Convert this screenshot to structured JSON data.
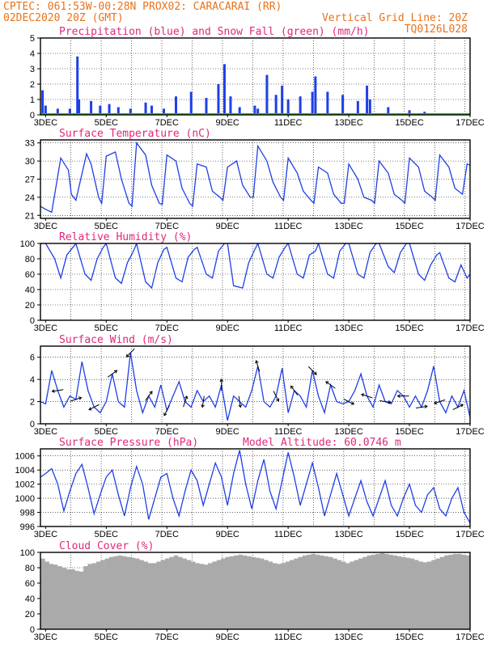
{
  "header": {
    "line1_left": "CPTEC:  061:53W-00:28N  PROX02: CARACARAI (RR)",
    "line2_left": "02DEC2020 20Z (GMT)",
    "line2_right": "Vertical Grid Line: 20Z",
    "line3_right": "TQ0126L028"
  },
  "x_tick_labels": [
    "3DEC",
    "5DEC",
    "7DEC",
    "9DEC",
    "11DEC",
    "13DEC",
    "15DEC",
    "17DEC"
  ],
  "colors": {
    "series_blue": "#1f3fe6",
    "snow_green": "#2fb52f",
    "cloud_gray": "#aaaaaa",
    "title_pink": "#e0287a",
    "header_orange": "#e8731c"
  },
  "panels": [
    {
      "id": "precip",
      "title": "Precipitation (blue) and Snow Fall (green) (mm/h)",
      "yticks": [
        "0",
        "1",
        "2",
        "3",
        "4",
        "5"
      ]
    },
    {
      "id": "temp",
      "title": "Surface Temperature (nC)",
      "yticks": [
        "21",
        "24",
        "27",
        "30",
        "33"
      ]
    },
    {
      "id": "rh",
      "title": "Relative Humidity (%)",
      "yticks": [
        "0",
        "20",
        "40",
        "60",
        "80",
        "100"
      ]
    },
    {
      "id": "wind",
      "title": "Surface Wind (m/s)",
      "yticks": [
        "0",
        "2",
        "4",
        "6"
      ]
    },
    {
      "id": "press",
      "title": "Surface Pressure (hPa)",
      "extra": "Model Altitude: 60.0746 m",
      "yticks": [
        "996",
        "998",
        "1000",
        "1002",
        "1004",
        "1006"
      ]
    },
    {
      "id": "cloud",
      "title": "Cloud Cover (%)",
      "yticks": [
        "0",
        "20",
        "40",
        "60",
        "80",
        "100"
      ]
    }
  ],
  "chart_data": [
    {
      "type": "bar",
      "title": "Precipitation (blue) and Snow Fall (green) (mm/h)",
      "ylim": [
        0,
        5
      ],
      "x_range_days": [
        2.83,
        17.0
      ],
      "series": [
        {
          "name": "Precipitation (blue)",
          "points": [
            [
              2.9,
              1.6
            ],
            [
              3.0,
              0.6
            ],
            [
              3.4,
              0.4
            ],
            [
              3.8,
              0.4
            ],
            [
              4.05,
              3.8
            ],
            [
              4.1,
              1.0
            ],
            [
              4.5,
              0.9
            ],
            [
              4.8,
              0.6
            ],
            [
              5.1,
              0.7
            ],
            [
              5.4,
              0.5
            ],
            [
              5.8,
              0.4
            ],
            [
              6.3,
              0.8
            ],
            [
              6.5,
              0.6
            ],
            [
              6.9,
              0.4
            ],
            [
              7.3,
              1.2
            ],
            [
              7.8,
              1.5
            ],
            [
              8.3,
              1.1
            ],
            [
              8.7,
              2.0
            ],
            [
              8.9,
              3.3
            ],
            [
              9.1,
              1.2
            ],
            [
              9.4,
              0.5
            ],
            [
              9.9,
              0.6
            ],
            [
              10.0,
              0.4
            ],
            [
              10.3,
              2.6
            ],
            [
              10.6,
              1.3
            ],
            [
              10.8,
              1.9
            ],
            [
              11.0,
              1.0
            ],
            [
              11.4,
              1.2
            ],
            [
              11.8,
              1.5
            ],
            [
              11.9,
              2.5
            ],
            [
              12.3,
              1.5
            ],
            [
              12.8,
              1.3
            ],
            [
              13.3,
              0.9
            ],
            [
              13.6,
              1.9
            ],
            [
              13.7,
              1.0
            ],
            [
              14.3,
              0.5
            ],
            [
              15.0,
              0.3
            ],
            [
              15.5,
              0.2
            ]
          ]
        },
        {
          "name": "Snow Fall (green)",
          "values": [
            0
          ]
        }
      ]
    },
    {
      "type": "line",
      "title": "Surface Temperature (nC)",
      "ylim": [
        20.5,
        33.5
      ],
      "x": [
        2.83,
        3.0,
        3.2,
        3.35,
        3.5,
        3.75,
        3.85,
        4.0,
        4.35,
        4.5,
        4.75,
        4.85,
        5.0,
        5.3,
        5.5,
        5.75,
        5.85,
        6.0,
        6.3,
        6.5,
        6.75,
        6.85,
        7.0,
        7.3,
        7.5,
        7.75,
        7.85,
        8.0,
        8.3,
        8.5,
        8.75,
        8.85,
        9.0,
        9.3,
        9.5,
        9.75,
        9.85,
        10.0,
        10.3,
        10.5,
        10.75,
        10.85,
        11.0,
        11.3,
        11.5,
        11.75,
        11.85,
        12.0,
        12.3,
        12.5,
        12.75,
        12.85,
        13.0,
        13.3,
        13.5,
        13.75,
        13.85,
        14.0,
        14.3,
        14.5,
        14.75,
        14.85,
        15.0,
        15.3,
        15.5,
        15.75,
        15.85,
        16.0,
        16.3,
        16.5,
        16.75,
        16.9,
        17.0
      ],
      "values": [
        22.5,
        22.0,
        21.5,
        26.0,
        30.5,
        28.5,
        24.5,
        23.5,
        31.2,
        29.5,
        24.0,
        23.0,
        30.8,
        31.5,
        27.0,
        23.0,
        22.5,
        33.0,
        31.0,
        26.0,
        23.0,
        22.8,
        31.0,
        30.0,
        25.5,
        23.0,
        22.5,
        29.5,
        29.0,
        25.0,
        24.0,
        23.5,
        29.0,
        30.0,
        26.0,
        24.0,
        24.0,
        32.5,
        30.0,
        26.5,
        24.0,
        23.5,
        30.5,
        28.0,
        25.0,
        23.5,
        23.0,
        29.0,
        28.0,
        24.5,
        23.0,
        23.0,
        29.5,
        27.0,
        24.0,
        23.5,
        23.0,
        30.0,
        28.0,
        24.5,
        23.5,
        23.0,
        30.5,
        29.0,
        25.0,
        24.0,
        23.5,
        31.0,
        29.0,
        25.5,
        24.5,
        29.5,
        29.3
      ]
    },
    {
      "type": "line",
      "title": "Relative Humidity (%)",
      "ylim": [
        0,
        100
      ],
      "x": [
        2.83,
        3.0,
        3.3,
        3.5,
        3.7,
        3.9,
        4.0,
        4.3,
        4.5,
        4.7,
        4.9,
        5.0,
        5.3,
        5.5,
        5.7,
        5.9,
        6.0,
        6.3,
        6.5,
        6.7,
        6.9,
        7.0,
        7.3,
        7.5,
        7.7,
        7.9,
        8.0,
        8.3,
        8.5,
        8.7,
        8.9,
        9.0,
        9.2,
        9.5,
        9.7,
        9.9,
        10.0,
        10.3,
        10.5,
        10.7,
        10.9,
        11.0,
        11.3,
        11.5,
        11.7,
        11.9,
        12.0,
        12.3,
        12.5,
        12.7,
        12.9,
        13.0,
        13.3,
        13.5,
        13.7,
        13.9,
        14.0,
        14.3,
        14.5,
        14.7,
        14.9,
        15.0,
        15.3,
        15.5,
        15.7,
        15.9,
        16.0,
        16.3,
        16.5,
        16.7,
        16.9,
        17.0
      ],
      "values": [
        100,
        100,
        80,
        55,
        85,
        95,
        100,
        60,
        52,
        80,
        95,
        100,
        55,
        48,
        75,
        90,
        100,
        50,
        42,
        75,
        92,
        95,
        55,
        50,
        82,
        92,
        95,
        60,
        55,
        90,
        100,
        100,
        45,
        42,
        75,
        92,
        100,
        60,
        55,
        82,
        95,
        100,
        60,
        55,
        85,
        90,
        100,
        60,
        55,
        90,
        100,
        100,
        60,
        55,
        88,
        100,
        100,
        70,
        62,
        88,
        100,
        100,
        60,
        52,
        72,
        85,
        88,
        55,
        50,
        72,
        55,
        60
      ]
    },
    {
      "type": "line",
      "title": "Surface Wind (m/s)",
      "ylim": [
        0,
        7
      ],
      "x": [
        2.83,
        3.0,
        3.2,
        3.4,
        3.6,
        3.8,
        4.0,
        4.2,
        4.4,
        4.6,
        4.8,
        5.0,
        5.2,
        5.4,
        5.6,
        5.8,
        6.0,
        6.2,
        6.4,
        6.6,
        6.8,
        7.0,
        7.2,
        7.4,
        7.6,
        7.8,
        8.0,
        8.2,
        8.4,
        8.6,
        8.8,
        9.0,
        9.2,
        9.4,
        9.6,
        9.8,
        10.0,
        10.2,
        10.4,
        10.6,
        10.8,
        11.0,
        11.2,
        11.4,
        11.6,
        11.8,
        12.0,
        12.2,
        12.4,
        12.6,
        12.8,
        13.0,
        13.2,
        13.4,
        13.6,
        13.8,
        14.0,
        14.2,
        14.4,
        14.6,
        14.8,
        15.0,
        15.2,
        15.4,
        15.6,
        15.8,
        16.0,
        16.2,
        16.4,
        16.6,
        16.8,
        17.0
      ],
      "values": [
        2.0,
        1.8,
        4.8,
        3.0,
        1.5,
        2.5,
        2.2,
        5.6,
        3.0,
        1.5,
        1.0,
        2.0,
        4.5,
        2.0,
        1.5,
        6.4,
        3.0,
        1.0,
        2.5,
        1.5,
        3.5,
        1.2,
        2.5,
        3.8,
        2.0,
        1.5,
        3.0,
        2.0,
        2.5,
        1.5,
        3.5,
        0.3,
        2.5,
        2.0,
        1.5,
        3.0,
        5.2,
        2.0,
        1.5,
        2.5,
        5.0,
        1.0,
        3.0,
        2.5,
        1.5,
        4.8,
        2.5,
        1.0,
        3.5,
        2.0,
        1.8,
        2.0,
        3.0,
        4.5,
        2.5,
        1.5,
        3.5,
        2.0,
        1.8,
        3.0,
        2.5,
        1.5,
        2.5,
        1.5,
        3.0,
        5.2,
        2.0,
        1.0,
        2.5,
        1.5,
        3.0,
        0.6
      ]
    },
    {
      "type": "line",
      "title": "Surface Pressure (hPa)",
      "ylim": [
        996,
        1007
      ],
      "x": [
        2.83,
        3.0,
        3.2,
        3.4,
        3.6,
        3.8,
        4.0,
        4.2,
        4.4,
        4.6,
        4.8,
        5.0,
        5.2,
        5.4,
        5.6,
        5.8,
        6.0,
        6.2,
        6.4,
        6.6,
        6.8,
        7.0,
        7.2,
        7.4,
        7.6,
        7.8,
        8.0,
        8.2,
        8.4,
        8.6,
        8.8,
        9.0,
        9.2,
        9.4,
        9.6,
        9.8,
        10.0,
        10.2,
        10.4,
        10.6,
        10.8,
        11.0,
        11.2,
        11.4,
        11.6,
        11.8,
        12.0,
        12.2,
        12.4,
        12.6,
        12.8,
        13.0,
        13.2,
        13.4,
        13.6,
        13.8,
        14.0,
        14.2,
        14.4,
        14.6,
        14.8,
        15.0,
        15.2,
        15.4,
        15.6,
        15.8,
        16.0,
        16.2,
        16.4,
        16.6,
        16.8,
        17.0
      ],
      "values": [
        1003.0,
        1003.5,
        1004.2,
        1002.0,
        998.2,
        1001.0,
        1003.5,
        1004.8,
        1001.5,
        997.8,
        1000.5,
        1003.0,
        1004.0,
        1000.5,
        997.5,
        1001.5,
        1004.5,
        1002.0,
        997.0,
        1000.0,
        1003.0,
        1003.5,
        1000.0,
        997.5,
        1001.0,
        1004.0,
        1002.5,
        999.0,
        1002.0,
        1005.0,
        1003.0,
        999.0,
        1003.5,
        1006.8,
        1002.0,
        998.5,
        1002.5,
        1005.5,
        1001.0,
        998.5,
        1002.5,
        1006.5,
        1003.0,
        999.0,
        1002.0,
        1005.0,
        1001.5,
        997.5,
        1000.5,
        1003.5,
        1000.5,
        997.5,
        1000.0,
        1002.5,
        999.5,
        997.5,
        1000.0,
        1002.5,
        999.0,
        997.5,
        1000.0,
        1002.0,
        999.0,
        998.0,
        1000.5,
        1001.5,
        998.5,
        997.5,
        1000.0,
        1001.5,
        998.0,
        996.5
      ]
    },
    {
      "type": "bar",
      "title": "Cloud Cover (%)",
      "ylim": [
        0,
        100
      ],
      "x_range_days": [
        2.83,
        17.0
      ],
      "values": [
        92,
        88,
        85,
        84,
        82,
        80,
        78,
        78,
        76,
        75,
        82,
        85,
        86,
        88,
        90,
        92,
        94,
        95,
        96,
        95,
        94,
        93,
        92,
        90,
        88,
        86,
        86,
        88,
        90,
        92,
        94,
        96,
        94,
        92,
        90,
        88,
        86,
        85,
        84,
        86,
        88,
        90,
        92,
        94,
        95,
        96,
        97,
        96,
        95,
        94,
        93,
        92,
        90,
        88,
        86,
        85,
        86,
        88,
        90,
        92,
        94,
        96,
        97,
        98,
        97,
        96,
        95,
        94,
        92,
        90,
        88,
        86,
        88,
        90,
        92,
        94,
        96,
        97,
        98,
        99,
        98,
        97,
        96,
        95,
        94,
        93,
        92,
        90,
        88,
        87,
        88,
        90,
        92,
        94,
        96,
        97,
        98,
        98,
        97,
        96
      ]
    }
  ]
}
